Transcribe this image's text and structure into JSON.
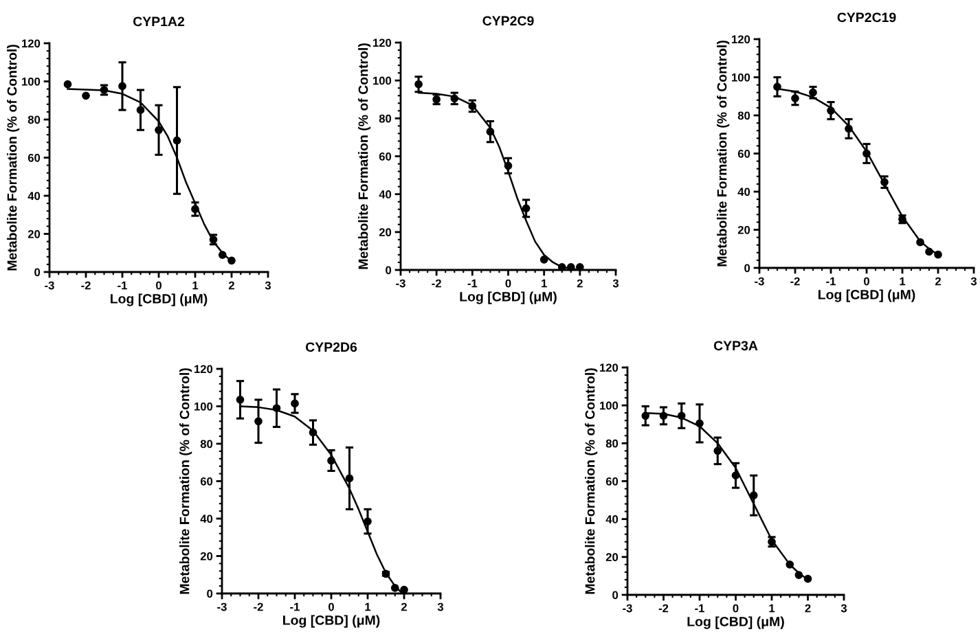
{
  "chart_data": [
    {
      "type": "scatter",
      "title": "CYP1A2",
      "xlabel": "Log [CBD] (μM)",
      "ylabel": "Metabolite Formation (% of Control)",
      "xlim": [
        -3,
        3
      ],
      "xticks": [
        -3,
        -2,
        -1,
        0,
        1,
        2,
        3
      ],
      "ylim": [
        0,
        120
      ],
      "yticks": [
        0,
        20,
        40,
        60,
        80,
        100,
        120
      ],
      "series": [
        {
          "marker": "circle",
          "color": "#000000",
          "x": [
            -2.5,
            -2,
            -1.5,
            -1,
            -0.5,
            0,
            0.5,
            1,
            1.5,
            1.75,
            2
          ],
          "values": [
            98.5,
            92.5,
            95.5,
            97.5,
            85,
            74.5,
            69,
            33,
            17,
            9,
            6
          ],
          "errors": [
            null,
            null,
            2.5,
            12.5,
            10.5,
            13,
            28,
            3.5,
            2.5,
            null,
            null
          ]
        },
        {
          "type": "line",
          "marker": "none",
          "color": "#000000",
          "x": [
            -2.5,
            -2,
            -1.5,
            -1,
            -0.5,
            0,
            0.25,
            0.5,
            0.75,
            1,
            1.25,
            1.5,
            1.75,
            2
          ],
          "values": [
            96,
            95.7,
            95.3,
            93.5,
            89,
            79,
            71,
            60,
            47,
            36,
            25,
            16,
            10,
            5.5
          ]
        }
      ]
    },
    {
      "type": "scatter",
      "title": "CYP2C9",
      "xlabel": "Log [CBD] (μM)",
      "ylabel": "Metabolite Formation (% of Control)",
      "xlim": [
        -3,
        3
      ],
      "xticks": [
        -3,
        -2,
        -1,
        0,
        1,
        2,
        3
      ],
      "ylim": [
        0,
        120
      ],
      "yticks": [
        0,
        20,
        40,
        60,
        80,
        100,
        120
      ],
      "series": [
        {
          "marker": "circle",
          "color": "#000000",
          "x": [
            -2.5,
            -2,
            -1.5,
            -1,
            -0.5,
            0,
            0.5,
            1,
            1.5,
            1.75,
            2
          ],
          "values": [
            98,
            90,
            90.5,
            86.5,
            73,
            55,
            32.5,
            5.5,
            1.5,
            1.5,
            1.5
          ],
          "errors": [
            4,
            2.5,
            3,
            3,
            5.5,
            4,
            4.5,
            null,
            null,
            null,
            null
          ]
        },
        {
          "type": "line",
          "marker": "none",
          "color": "#000000",
          "x": [
            -2.5,
            -2,
            -1.5,
            -1,
            -0.5,
            -0.25,
            0,
            0.25,
            0.5,
            0.75,
            1,
            1.25,
            1.5,
            2
          ],
          "values": [
            93.5,
            93,
            91.5,
            87,
            75,
            65,
            52,
            38,
            26,
            15,
            8,
            4,
            1.5,
            0
          ]
        }
      ]
    },
    {
      "type": "scatter",
      "title": "CYP2C19",
      "xlabel": "Log [CBD] (μM)",
      "ylabel": "Metabolite Formation (% of Control)",
      "xlim": [
        -3,
        3
      ],
      "xticks": [
        -3,
        -2,
        -1,
        0,
        1,
        2,
        3
      ],
      "ylim": [
        0,
        120
      ],
      "yticks": [
        0,
        20,
        40,
        60,
        80,
        100,
        120
      ],
      "series": [
        {
          "marker": "circle",
          "color": "#000000",
          "x": [
            -2.5,
            -2,
            -1.5,
            -1,
            -0.5,
            0,
            0.5,
            1,
            1.5,
            1.75,
            2
          ],
          "values": [
            95,
            89,
            92,
            82.5,
            73,
            60,
            45,
            25.5,
            13.5,
            8.5,
            7
          ],
          "errors": [
            5,
            3.5,
            3,
            4.5,
            5,
            5,
            3,
            2,
            null,
            null,
            null
          ]
        },
        {
          "type": "line",
          "marker": "none",
          "color": "#000000",
          "x": [
            -2.5,
            -2,
            -1.5,
            -1,
            -0.5,
            0,
            0.5,
            1,
            1.5,
            1.75,
            2
          ],
          "values": [
            94,
            92.5,
            89.5,
            84,
            74.5,
            61,
            44,
            27,
            14,
            10,
            7
          ]
        }
      ]
    },
    {
      "type": "scatter",
      "title": "CYP2D6",
      "xlabel": "Log [CBD] (μM)",
      "ylabel": "Metabolite Formation (% of Control)",
      "xlim": [
        -3,
        3
      ],
      "xticks": [
        -3,
        -2,
        -1,
        0,
        1,
        2,
        3
      ],
      "ylim": [
        0,
        120
      ],
      "yticks": [
        0,
        20,
        40,
        60,
        80,
        100,
        120
      ],
      "series": [
        {
          "marker": "circle",
          "color": "#000000",
          "x": [
            -2.5,
            -2,
            -1.5,
            -1,
            -0.5,
            0,
            0.5,
            1,
            1.5,
            1.75,
            2
          ],
          "values": [
            103.5,
            92,
            99,
            101.5,
            86,
            71,
            61.5,
            38.5,
            10.5,
            3,
            2
          ],
          "errors": [
            10,
            11.5,
            10,
            5,
            6.5,
            5.5,
            16.5,
            6.5,
            1,
            null,
            null
          ]
        },
        {
          "type": "line",
          "marker": "none",
          "color": "#000000",
          "x": [
            -2.5,
            -2,
            -1.5,
            -1,
            -0.5,
            0,
            0.5,
            0.75,
            1,
            1.25,
            1.5,
            1.75,
            1.95
          ],
          "values": [
            100,
            99.5,
            98,
            94.5,
            87,
            74,
            56,
            45,
            33,
            21,
            11,
            4,
            0
          ]
        }
      ]
    },
    {
      "type": "scatter",
      "title": "CYP3A",
      "xlabel": "Log [CBD] (μM)",
      "ylabel": "Metabolite Formation (% of Control)",
      "xlim": [
        -3,
        3
      ],
      "xticks": [
        -3,
        -2,
        -1,
        0,
        1,
        2,
        3
      ],
      "ylim": [
        0,
        120
      ],
      "yticks": [
        0,
        20,
        40,
        60,
        80,
        100,
        120
      ],
      "series": [
        {
          "marker": "circle",
          "color": "#000000",
          "x": [
            -2.5,
            -2,
            -1.5,
            -1,
            -0.5,
            0,
            0.5,
            1,
            1.5,
            1.75,
            2
          ],
          "values": [
            94.5,
            94.5,
            94.5,
            90.5,
            76,
            63,
            52.5,
            28,
            16,
            10.5,
            8.5
          ],
          "errors": [
            5,
            4.5,
            6.5,
            10,
            7,
            6.5,
            10.5,
            2.5,
            null,
            null,
            null
          ]
        },
        {
          "type": "line",
          "marker": "none",
          "color": "#000000",
          "x": [
            -2.5,
            -2,
            -1.5,
            -1,
            -0.5,
            0,
            0.5,
            1,
            1.5,
            1.75,
            2
          ],
          "values": [
            96,
            95.5,
            93.5,
            89,
            80,
            67,
            48,
            29,
            16,
            11.5,
            8
          ]
        }
      ]
    }
  ]
}
